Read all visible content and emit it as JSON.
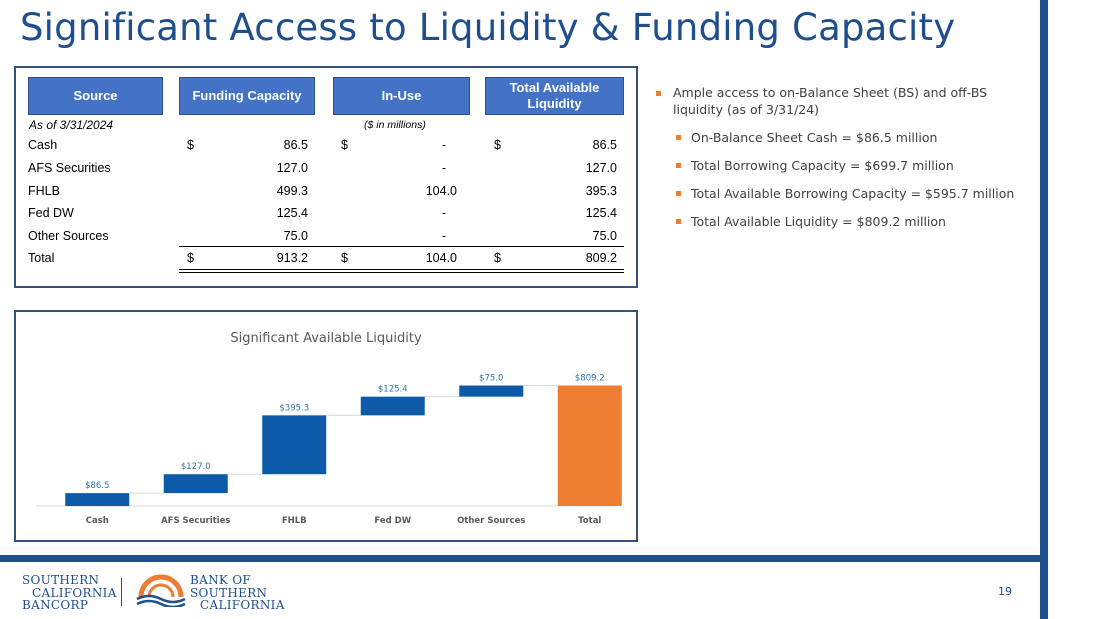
{
  "title": "Significant Access to Liquidity & Funding Capacity",
  "table": {
    "headers": [
      "Source",
      "Funding Capacity",
      "In-Use",
      "Total Available Liquidity"
    ],
    "as_of": "As of 3/31/2024",
    "units": "($ in millions)",
    "currency_symbol": "$",
    "rows": [
      {
        "label": "Cash",
        "funding": "86.5",
        "in_use": "-",
        "available": "86.5"
      },
      {
        "label": "AFS Securities",
        "funding": "127.0",
        "in_use": "-",
        "available": "127.0"
      },
      {
        "label": "FHLB",
        "funding": "499.3",
        "in_use": "104.0",
        "available": "395.3"
      },
      {
        "label": "Fed DW",
        "funding": "125.4",
        "in_use": "-",
        "available": "125.4"
      },
      {
        "label": "Other Sources",
        "funding": "75.0",
        "in_use": "-",
        "available": "75.0"
      }
    ],
    "total": {
      "label": "Total",
      "funding": "913.2",
      "in_use": "104.0",
      "available": "809.2"
    }
  },
  "bullets": {
    "main": "Ample access to on-Balance Sheet (BS) and off-BS liquidity (as of 3/31/24)",
    "sub": [
      "On-Balance Sheet Cash = $86.5 million",
      "Total Borrowing Capacity = $699.7 million",
      "Total Available Borrowing Capacity = $595.7 million",
      "Total Available Liquidity = $809.2 million"
    ]
  },
  "chart_data": {
    "type": "bar",
    "subtype": "waterfall",
    "title": "Significant Available Liquidity",
    "categories": [
      "Cash",
      "AFS Securities",
      "FHLB",
      "Fed DW",
      "Other Sources",
      "Total"
    ],
    "values": [
      86.5,
      127.0,
      395.3,
      125.4,
      75.0,
      809.2
    ],
    "data_labels": [
      "$86.5",
      "$127.0",
      "$395.3",
      "$125.4",
      "$75.0",
      "$809.2"
    ],
    "ylim": [
      0,
      900
    ],
    "grid": false,
    "colors": {
      "increase": "#0d5ba8",
      "total": "#ed7d31",
      "label": "#2e75b6"
    }
  },
  "footer": {
    "logo_left": [
      "SOUTHERN",
      "CALIFORNIA",
      "BANCORP"
    ],
    "logo_right": [
      "BANK OF",
      "SOUTHERN",
      "CALIFORNIA"
    ],
    "page_number": "19"
  },
  "colors": {
    "brand": "#1f4e8c",
    "header_fill": "#4472c4",
    "bullet": "#ed7d31"
  }
}
